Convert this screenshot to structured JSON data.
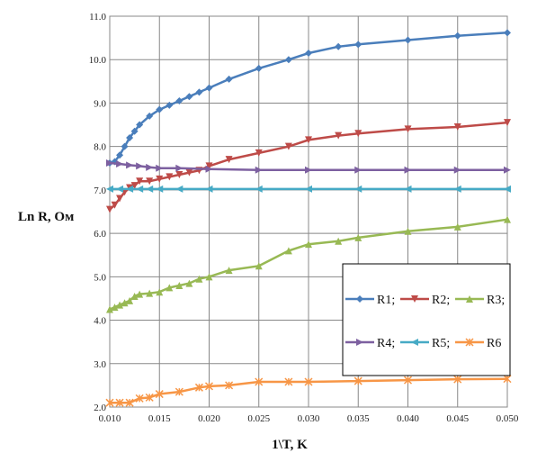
{
  "chart_data": {
    "type": "line",
    "xlabel": "1\\T, K",
    "ylabel": "Ln R, Ом",
    "xlim": [
      0.01,
      0.05
    ],
    "ylim": [
      2.0,
      11.0
    ],
    "x_ticks": [
      "0.010",
      "0.015",
      "0.020",
      "0.025",
      "0.030",
      "0.035",
      "0.040",
      "0.045",
      "0.050"
    ],
    "y_ticks": [
      "2.0",
      "3.0",
      "4.0",
      "5.0",
      "6.0",
      "7.0",
      "8.0",
      "9.0",
      "10.0",
      "11.0"
    ],
    "grid": true,
    "legend_position": "right, boxed, 3 columns",
    "series": [
      {
        "name": "R1;",
        "color": "#4a7ebb",
        "marker": "diamond",
        "points": [
          [
            0.01,
            7.62
          ],
          [
            0.0105,
            7.65
          ],
          [
            0.011,
            7.8
          ],
          [
            0.0115,
            8.0
          ],
          [
            0.012,
            8.2
          ],
          [
            0.0125,
            8.35
          ],
          [
            0.013,
            8.5
          ],
          [
            0.014,
            8.7
          ],
          [
            0.015,
            8.85
          ],
          [
            0.016,
            8.95
          ],
          [
            0.017,
            9.05
          ],
          [
            0.018,
            9.15
          ],
          [
            0.019,
            9.25
          ],
          [
            0.02,
            9.35
          ],
          [
            0.022,
            9.55
          ],
          [
            0.025,
            9.8
          ],
          [
            0.028,
            10.0
          ],
          [
            0.03,
            10.15
          ],
          [
            0.033,
            10.3
          ],
          [
            0.035,
            10.35
          ],
          [
            0.04,
            10.45
          ],
          [
            0.045,
            10.55
          ],
          [
            0.05,
            10.62
          ]
        ]
      },
      {
        "name": "R2;",
        "color": "#be4b48",
        "marker": "triangle-down",
        "points": [
          [
            0.01,
            6.55
          ],
          [
            0.0105,
            6.65
          ],
          [
            0.011,
            6.8
          ],
          [
            0.0115,
            6.95
          ],
          [
            0.012,
            7.05
          ],
          [
            0.0125,
            7.1
          ],
          [
            0.013,
            7.2
          ],
          [
            0.014,
            7.2
          ],
          [
            0.015,
            7.25
          ],
          [
            0.016,
            7.3
          ],
          [
            0.017,
            7.35
          ],
          [
            0.018,
            7.4
          ],
          [
            0.019,
            7.45
          ],
          [
            0.02,
            7.55
          ],
          [
            0.022,
            7.7
          ],
          [
            0.025,
            7.85
          ],
          [
            0.028,
            8.0
          ],
          [
            0.03,
            8.15
          ],
          [
            0.033,
            8.25
          ],
          [
            0.035,
            8.3
          ],
          [
            0.04,
            8.4
          ],
          [
            0.045,
            8.45
          ],
          [
            0.05,
            8.55
          ]
        ]
      },
      {
        "name": "R3;",
        "color": "#98b954",
        "marker": "triangle-up",
        "points": [
          [
            0.01,
            4.25
          ],
          [
            0.0105,
            4.3
          ],
          [
            0.011,
            4.35
          ],
          [
            0.0115,
            4.4
          ],
          [
            0.012,
            4.45
          ],
          [
            0.0125,
            4.55
          ],
          [
            0.013,
            4.6
          ],
          [
            0.014,
            4.62
          ],
          [
            0.015,
            4.65
          ],
          [
            0.016,
            4.75
          ],
          [
            0.017,
            4.8
          ],
          [
            0.018,
            4.85
          ],
          [
            0.019,
            4.95
          ],
          [
            0.02,
            5.0
          ],
          [
            0.022,
            5.15
          ],
          [
            0.025,
            5.25
          ],
          [
            0.028,
            5.6
          ],
          [
            0.03,
            5.75
          ],
          [
            0.033,
            5.82
          ],
          [
            0.035,
            5.9
          ],
          [
            0.04,
            6.05
          ],
          [
            0.045,
            6.15
          ],
          [
            0.05,
            6.32
          ]
        ]
      },
      {
        "name": "R4;",
        "color": "#7d60a0",
        "marker": "triangle-right",
        "points": [
          [
            0.01,
            7.62
          ],
          [
            0.011,
            7.6
          ],
          [
            0.012,
            7.57
          ],
          [
            0.013,
            7.55
          ],
          [
            0.014,
            7.52
          ],
          [
            0.015,
            7.5
          ],
          [
            0.017,
            7.5
          ],
          [
            0.02,
            7.48
          ],
          [
            0.025,
            7.46
          ],
          [
            0.03,
            7.46
          ],
          [
            0.035,
            7.46
          ],
          [
            0.04,
            7.46
          ],
          [
            0.045,
            7.46
          ],
          [
            0.05,
            7.46
          ]
        ]
      },
      {
        "name": "R5;",
        "color": "#46aac5",
        "marker": "triangle-left",
        "points": [
          [
            0.01,
            7.02
          ],
          [
            0.011,
            7.02
          ],
          [
            0.012,
            7.02
          ],
          [
            0.013,
            7.02
          ],
          [
            0.014,
            7.02
          ],
          [
            0.015,
            7.02
          ],
          [
            0.017,
            7.02
          ],
          [
            0.02,
            7.02
          ],
          [
            0.025,
            7.02
          ],
          [
            0.03,
            7.02
          ],
          [
            0.035,
            7.02
          ],
          [
            0.04,
            7.02
          ],
          [
            0.045,
            7.02
          ],
          [
            0.05,
            7.02
          ]
        ]
      },
      {
        "name": "R6",
        "color": "#f79646",
        "marker": "star",
        "points": [
          [
            0.01,
            2.1
          ],
          [
            0.011,
            2.1
          ],
          [
            0.012,
            2.1
          ],
          [
            0.013,
            2.2
          ],
          [
            0.014,
            2.22
          ],
          [
            0.015,
            2.3
          ],
          [
            0.017,
            2.35
          ],
          [
            0.019,
            2.45
          ],
          [
            0.02,
            2.48
          ],
          [
            0.022,
            2.5
          ],
          [
            0.025,
            2.58
          ],
          [
            0.028,
            2.58
          ],
          [
            0.03,
            2.58
          ],
          [
            0.035,
            2.6
          ],
          [
            0.04,
            2.62
          ],
          [
            0.045,
            2.64
          ],
          [
            0.05,
            2.65
          ]
        ]
      }
    ]
  }
}
